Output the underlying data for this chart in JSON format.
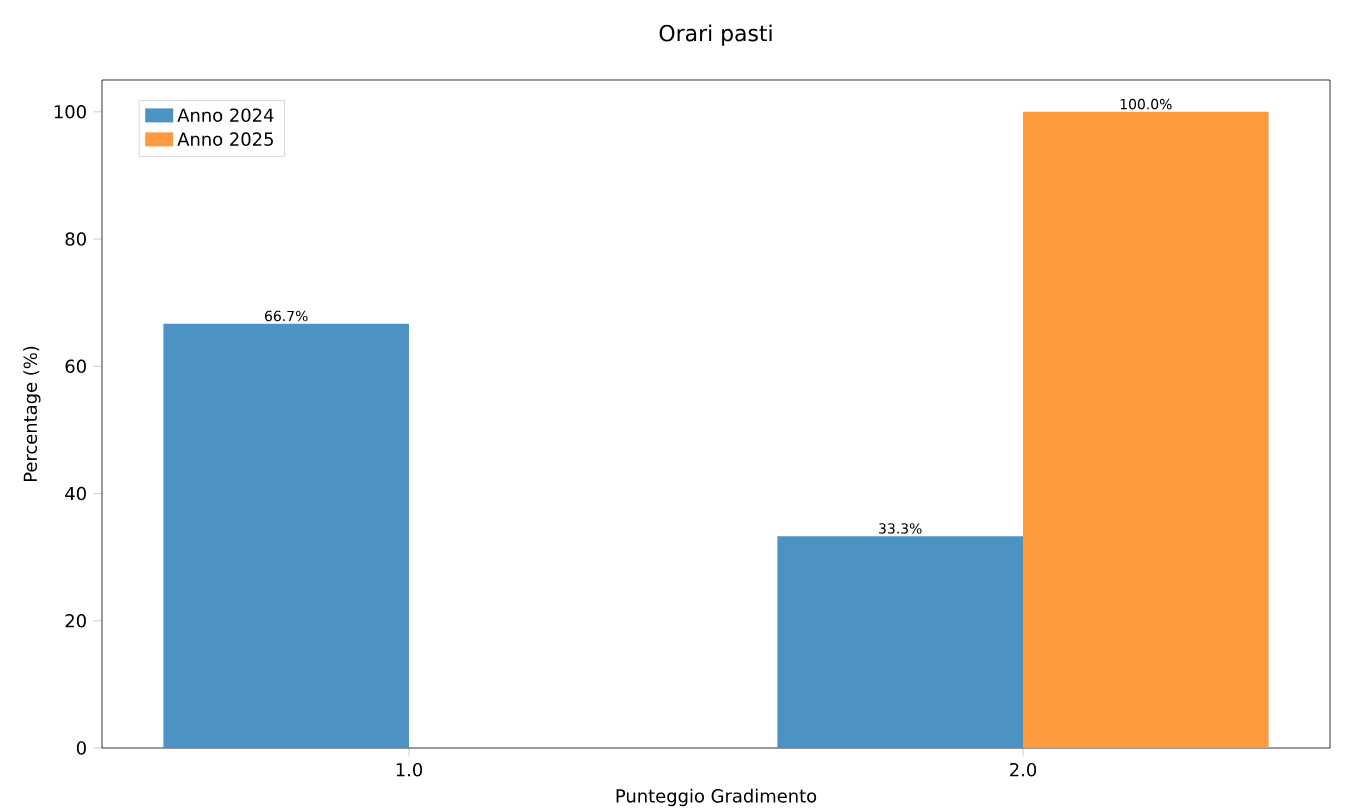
{
  "chart_data": {
    "type": "bar",
    "title": "Orari pasti",
    "xlabel": "Punteggio Gradimento",
    "ylabel": "Percentage (%)",
    "categories": [
      "1.0",
      "2.0"
    ],
    "series": [
      {
        "name": "Anno 2024",
        "color": "#4c92c3",
        "values": [
          66.7,
          33.3
        ],
        "value_labels": [
          "66.7%",
          "33.3%"
        ]
      },
      {
        "name": "Anno 2025",
        "color": "#ff993e",
        "values": [
          null,
          100.0
        ],
        "value_labels": [
          null,
          "100.0%"
        ]
      }
    ],
    "ylim": [
      0,
      105
    ],
    "yticks": [
      0,
      20,
      40,
      60,
      80,
      100
    ],
    "grid": false,
    "legend": "top left"
  }
}
